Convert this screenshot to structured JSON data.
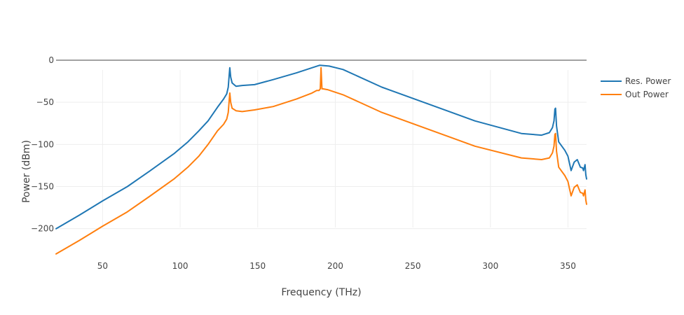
{
  "chart_data": {
    "type": "line",
    "xlabel": "Frequency (THz)",
    "ylabel": "Power (dBm)",
    "xlim": [
      20,
      362
    ],
    "ylim": [
      -236,
      5
    ],
    "x_ticks": [
      50,
      100,
      150,
      200,
      250,
      300,
      350
    ],
    "y_ticks": [
      0,
      -50,
      -100,
      -150,
      -200
    ],
    "y_tick_labels": [
      "0",
      "−50",
      "−100",
      "−150",
      "−200"
    ],
    "grid": true,
    "legend_position": "top-right",
    "series": [
      {
        "name": "Res. Power",
        "color": "#1f77b4",
        "x": [
          20,
          35,
          50,
          66,
          80,
          96,
          105,
          112,
          118,
          124,
          128,
          130,
          131,
          131.6,
          132,
          132.6,
          133.5,
          136,
          140,
          148,
          160,
          175,
          185,
          190,
          196,
          205,
          230,
          260,
          290,
          320,
          333,
          338,
          340,
          341,
          341.6,
          342,
          342.6,
          344,
          348,
          350,
          352,
          354,
          356,
          358,
          359.5,
          360,
          361,
          361.5,
          362
        ],
        "y": [
          -200,
          -184,
          -167,
          -150,
          -132,
          -111,
          -97,
          -84,
          -72,
          -56,
          -46,
          -40,
          -32,
          -18,
          -9,
          -20,
          -27,
          -31,
          -30,
          -29,
          -23,
          -15,
          -9,
          -6,
          -7,
          -11,
          -32,
          -52,
          -72,
          -87,
          -89,
          -86,
          -80,
          -72,
          -58,
          -57,
          -78,
          -97,
          -107,
          -114,
          -131,
          -121,
          -118,
          -127,
          -128,
          -131,
          -124,
          -136,
          -141
        ]
      },
      {
        "name": "Out Power",
        "color": "#ff7f0e",
        "x": [
          20,
          35,
          50,
          66,
          80,
          96,
          105,
          112,
          118,
          124,
          128,
          130,
          131,
          131.6,
          132,
          132.6,
          133.5,
          136,
          140,
          148,
          160,
          175,
          185,
          188,
          189.5,
          190.3,
          190.8,
          191.4,
          192,
          195,
          205,
          230,
          260,
          290,
          320,
          333,
          338,
          340,
          341,
          341.6,
          342,
          342.6,
          344,
          348,
          350,
          352,
          354,
          356,
          358,
          359.5,
          360,
          361,
          361.5,
          362
        ],
        "y": [
          -230,
          -214,
          -197,
          -180,
          -162,
          -141,
          -127,
          -114,
          -100,
          -84,
          -76,
          -70,
          -62,
          -48,
          -39,
          -50,
          -57,
          -60,
          -61,
          -59,
          -55,
          -46,
          -39,
          -36,
          -36,
          -34,
          -9,
          -34,
          -34,
          -35,
          -41,
          -62,
          -82,
          -102,
          -116,
          -118,
          -116,
          -110,
          -102,
          -88,
          -87,
          -108,
          -127,
          -137,
          -144,
          -161,
          -151,
          -148,
          -157,
          -158,
          -161,
          -154,
          -166,
          -171
        ]
      }
    ]
  }
}
